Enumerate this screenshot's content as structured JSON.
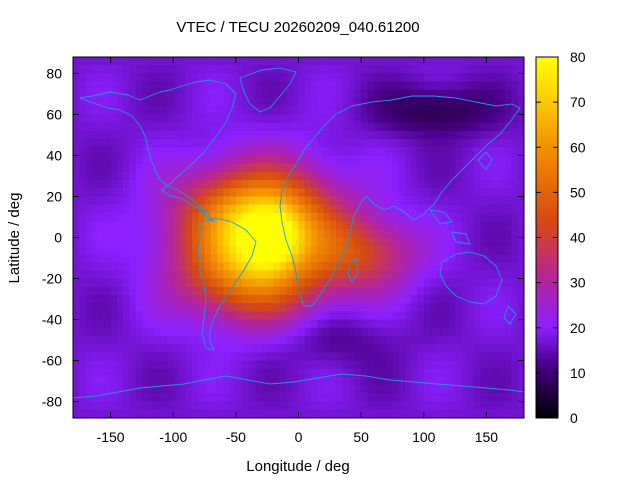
{
  "chart_data": {
    "type": "heatmap",
    "title": "VTEC / TECU 20260209_040.61200",
    "xlabel": "Longitude / deg",
    "ylabel": "Latitude / deg",
    "xlim": [
      -180,
      180
    ],
    "ylim": [
      -88,
      88
    ],
    "x_ticks": [
      -150,
      -100,
      -50,
      0,
      50,
      100,
      150
    ],
    "y_ticks": [
      -80,
      -60,
      -40,
      -20,
      0,
      20,
      40,
      60,
      80
    ],
    "colorbar": {
      "min": 0,
      "max": 80,
      "ticks": [
        0,
        10,
        20,
        30,
        40,
        50,
        60,
        70,
        80
      ],
      "colormap": "gnuplot-rgbformulae-7-5-15",
      "stops": [
        "#000000",
        "#5a009f",
        "#8c20ff",
        "#c21b58",
        "#e86000",
        "#ffb400",
        "#ffff00"
      ]
    },
    "background_level": 17,
    "features": [
      {
        "name": "equatorial-anomaly-peak",
        "lon": -22,
        "lat": 0,
        "value": 75
      },
      {
        "name": "anomaly-north-crest",
        "lon": -40,
        "lat": 12,
        "value": 62
      },
      {
        "name": "anomaly-south-crest",
        "lon": -45,
        "lat": -18,
        "value": 58
      },
      {
        "name": "indian-ocean-extension",
        "lon": 55,
        "lat": -8,
        "value": 38
      },
      {
        "name": "north-siberia-minimum",
        "lon": 110,
        "lat": 62,
        "value": 6
      },
      {
        "name": "south-pacific-minimum",
        "lon": 30,
        "lat": -50,
        "value": 12
      }
    ],
    "overlay": "coastlines"
  }
}
